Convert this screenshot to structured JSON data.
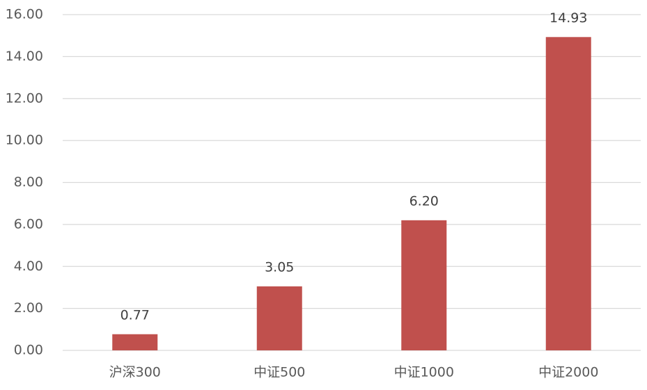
{
  "chart_data": {
    "type": "bar",
    "categories": [
      "沪深300",
      "中证500",
      "中证1000",
      "中证2000"
    ],
    "values": [
      0.77,
      3.05,
      6.2,
      14.93
    ],
    "value_labels": [
      "0.77",
      "3.05",
      "6.20",
      "14.93"
    ],
    "color": "#c0504d",
    "ylim": [
      0,
      16
    ],
    "yticks": [
      {
        "value": 0,
        "label": "0.00"
      },
      {
        "value": 2,
        "label": "2.00"
      },
      {
        "value": 4,
        "label": "4.00"
      },
      {
        "value": 6,
        "label": "6.00"
      },
      {
        "value": 8,
        "label": "8.00"
      },
      {
        "value": 10,
        "label": "10.00"
      },
      {
        "value": 12,
        "label": "12.00"
      },
      {
        "value": 14,
        "label": "14.00"
      },
      {
        "value": 16,
        "label": "16.00"
      }
    ],
    "grid": true
  }
}
